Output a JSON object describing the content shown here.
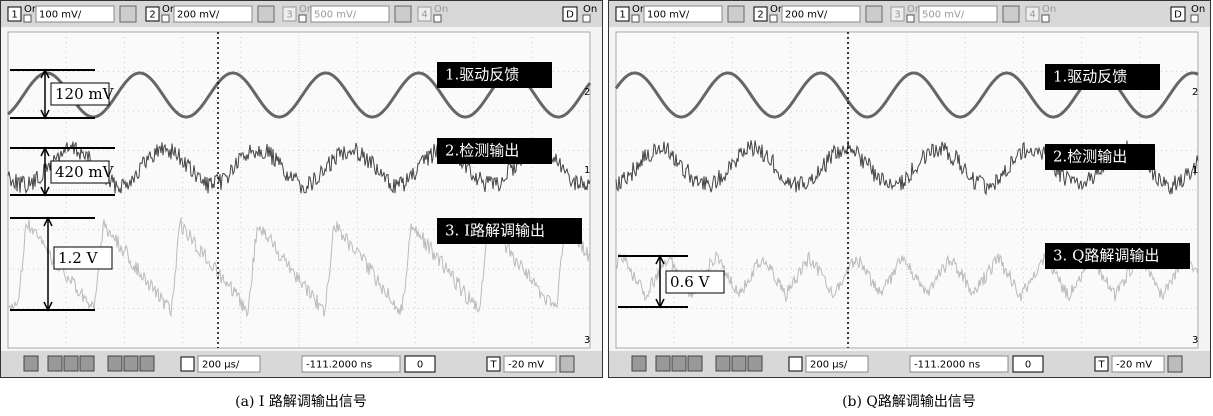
{
  "panels": [
    {
      "top_bar": {
        "channels": [
          {
            "number": "1",
            "state": "On",
            "scale": "100 mV/"
          },
          {
            "number": "2",
            "state": "On",
            "scale": "200 mV/"
          },
          {
            "number": "3",
            "state": "On",
            "scale": "500 mV/"
          },
          {
            "number": "4",
            "state": "On"
          }
        ],
        "digital": "D",
        "digital_state": "On"
      },
      "traces": [
        "1.驱动反馈",
        "2.检测输出",
        "3. I路解调输出"
      ],
      "markers": [
        "2",
        "1",
        "3"
      ],
      "measurements": [
        "120 mV",
        "420 mV",
        "1.2 V"
      ],
      "bottom_bar": {
        "timebase": "200 µs/",
        "delay": "-111.2000 ns",
        "step": "0",
        "trigger": "T",
        "trigger_level": "-20 mV"
      },
      "caption": "(a) I 路解调输出信号"
    },
    {
      "top_bar": {
        "channels": [
          {
            "number": "1",
            "state": "On",
            "scale": "100 mV/"
          },
          {
            "number": "2",
            "state": "On",
            "scale": "200 mV/"
          },
          {
            "number": "3",
            "state": "On",
            "scale": "500 mV/"
          },
          {
            "number": "4",
            "state": "On"
          }
        ],
        "digital": "D",
        "digital_state": "On"
      },
      "traces": [
        "1.驱动反馈",
        "2.检测输出",
        "3. Q路解调输出"
      ],
      "markers": [
        "2",
        "1",
        "3"
      ],
      "measurements": [
        "0.6 V"
      ],
      "bottom_bar": {
        "timebase": "200 µs/",
        "delay": "-111.2000 ns",
        "step": "0",
        "trigger": "T",
        "trigger_level": "-20 mV"
      },
      "caption": "(b) Q路解调输出信号"
    }
  ]
}
